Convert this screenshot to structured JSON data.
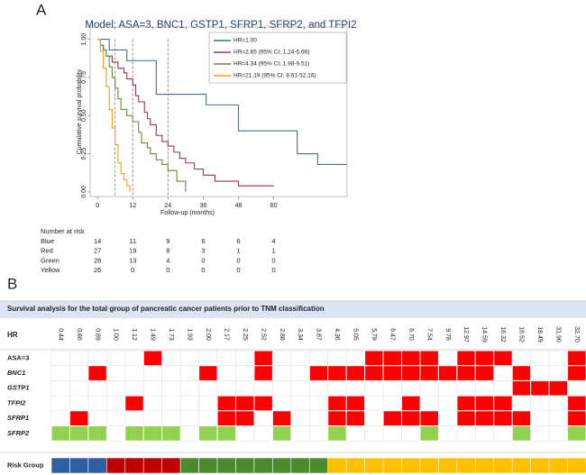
{
  "panel_a_label": "A",
  "panel_b_label": "B",
  "chart_data": {
    "type": "step-line",
    "title": "Model; ASA=3, BNC1, GSTP1, SFRP1, SFRP2, and TFPI2",
    "x_label": "Follow-up (months)",
    "y_label": "Cumulative survival probability",
    "xlim": [
      -2.5,
      85
    ],
    "ylim": [
      -0.03,
      1.08
    ],
    "xticks": [
      0,
      12,
      24,
      36,
      48,
      60
    ],
    "yticks": [
      {
        "value": 0,
        "label": "0.00"
      },
      {
        "value": 0.25,
        "label": "0.25"
      },
      {
        "value": 0.5,
        "label": "0.50"
      },
      {
        "value": 0.75,
        "label": "0.75"
      },
      {
        "value": 1,
        "label": "1.00"
      }
    ],
    "vlines": [
      6,
      12,
      24
    ],
    "series": [
      {
        "name": "HR=1.00",
        "color": "#4e6e80",
        "x": [
          0,
          4,
          10,
          20,
          37,
          48,
          68,
          75,
          85
        ],
        "values": [
          1,
          0.93,
          0.86,
          0.64,
          0.57,
          0.4,
          0.25,
          0.18,
          0.18
        ]
      },
      {
        "name": "HR=2.65 (95% CI; 1.24-5.66)",
        "color": "#8b3a5a",
        "x": [
          0,
          1,
          2,
          3,
          5,
          7,
          9,
          10,
          12,
          13,
          14,
          16,
          17,
          18,
          20,
          22,
          24,
          26,
          28,
          30,
          33,
          36,
          40,
          48,
          60
        ],
        "values": [
          1,
          0.96,
          0.93,
          0.89,
          0.85,
          0.81,
          0.78,
          0.74,
          0.7,
          0.63,
          0.59,
          0.52,
          0.48,
          0.44,
          0.37,
          0.33,
          0.3,
          0.26,
          0.22,
          0.19,
          0.15,
          0.11,
          0.07,
          0.04,
          0.04
        ]
      },
      {
        "name": "HR=4.34 (95% CI; 1.98-9.51)",
        "color": "#6a8a3a",
        "x": [
          0,
          1,
          2,
          3,
          4,
          5,
          6,
          7,
          8,
          10,
          12,
          14,
          15,
          17,
          18,
          20,
          22,
          24,
          27,
          30
        ],
        "values": [
          1,
          0.96,
          0.93,
          0.89,
          0.82,
          0.75,
          0.68,
          0.61,
          0.54,
          0.5,
          0.46,
          0.39,
          0.32,
          0.29,
          0.25,
          0.21,
          0.18,
          0.14,
          0.07,
          0
        ]
      },
      {
        "name": "HR=21.19 (95% CI; 8.61-52.16)",
        "color": "#e8a020",
        "x": [
          0,
          1,
          2,
          3,
          4,
          5,
          6,
          7,
          8,
          9,
          10,
          11
        ],
        "values": [
          1,
          0.92,
          0.81,
          0.69,
          0.54,
          0.42,
          0.31,
          0.19,
          0.12,
          0.08,
          0.04,
          0
        ]
      }
    ],
    "risk_table": {
      "title": "Number at risk",
      "rows": [
        {
          "label": "Blue",
          "values": [
            14,
            11,
            9,
            6,
            6,
            4
          ]
        },
        {
          "label": "Red",
          "values": [
            27,
            19,
            8,
            3,
            1,
            1
          ]
        },
        {
          "label": "Green",
          "values": [
            28,
            13,
            4,
            0,
            0,
            0
          ]
        },
        {
          "label": "Yellow",
          "values": [
            26,
            0,
            0,
            0,
            0,
            0
          ]
        }
      ]
    }
  },
  "matrix": {
    "title": "Survival analysis for the total group of pancreatic cancer patients prior to TNM classification",
    "hr_label": "HR",
    "hr": [
      "0.44",
      "0.86",
      "0.89",
      "1.00",
      "1.12",
      "1.49",
      "1.73",
      "1.93",
      "2.00",
      "2.17",
      "2.25",
      "2.52",
      "2.88",
      "3.34",
      "3.87",
      "4.36",
      "5.05",
      "5.78",
      "6.47",
      "6.70",
      "7.54",
      "9.78",
      "12.97",
      "14.59",
      "16.32",
      "16.52",
      "18.49",
      "31.90",
      "32.70"
    ],
    "rows": [
      {
        "label": "ASA=3",
        "italic": false,
        "color": "#ff0000",
        "cells": [
          0,
          0,
          0,
          0,
          0,
          1,
          0,
          0,
          0,
          0,
          0,
          1,
          0,
          0,
          0,
          0,
          0,
          1,
          1,
          1,
          1,
          0,
          1,
          1,
          1,
          0,
          0,
          0,
          1
        ]
      },
      {
        "label": "BNC1",
        "italic": true,
        "color": "#ff0000",
        "cells": [
          0,
          0,
          1,
          0,
          0,
          0,
          0,
          0,
          1,
          0,
          0,
          1,
          0,
          0,
          1,
          1,
          1,
          1,
          1,
          1,
          1,
          1,
          1,
          1,
          0,
          1,
          0,
          0,
          1
        ]
      },
      {
        "label": "GSTP1",
        "italic": true,
        "color": "#ff0000",
        "cells": [
          0,
          0,
          0,
          0,
          0,
          0,
          0,
          0,
          0,
          0,
          0,
          0,
          0,
          0,
          0,
          0,
          0,
          0,
          0,
          0,
          0,
          0,
          0,
          0,
          0,
          1,
          1,
          1,
          0
        ]
      },
      {
        "label": "TFPI2",
        "italic": true,
        "color": "#ff0000",
        "cells": [
          0,
          0,
          0,
          0,
          1,
          0,
          0,
          0,
          0,
          1,
          1,
          1,
          0,
          0,
          0,
          1,
          1,
          0,
          0,
          1,
          0,
          0,
          1,
          1,
          1,
          0,
          0,
          0,
          1
        ]
      },
      {
        "label": "SFRP1",
        "italic": true,
        "color": "#ff0000",
        "cells": [
          0,
          1,
          0,
          0,
          0,
          0,
          0,
          0,
          0,
          1,
          1,
          0,
          1,
          0,
          0,
          1,
          1,
          0,
          1,
          1,
          1,
          0,
          1,
          1,
          1,
          1,
          0,
          0,
          1
        ]
      },
      {
        "label": "SFRP2",
        "italic": true,
        "color": "#92d050",
        "cells": [
          1,
          1,
          1,
          0,
          1,
          1,
          1,
          0,
          1,
          1,
          0,
          0,
          1,
          0,
          0,
          1,
          0,
          0,
          0,
          0,
          1,
          0,
          0,
          0,
          0,
          1,
          0,
          0,
          1
        ]
      }
    ],
    "risk_group": {
      "label": "Risk Group",
      "groups": [
        {
          "color": "#2f5fa0",
          "count": 3
        },
        {
          "color": "#c00000",
          "count": 4
        },
        {
          "color": "#4d8a2e",
          "count": 8
        },
        {
          "color": "#ffc000",
          "count": 14
        }
      ]
    }
  }
}
